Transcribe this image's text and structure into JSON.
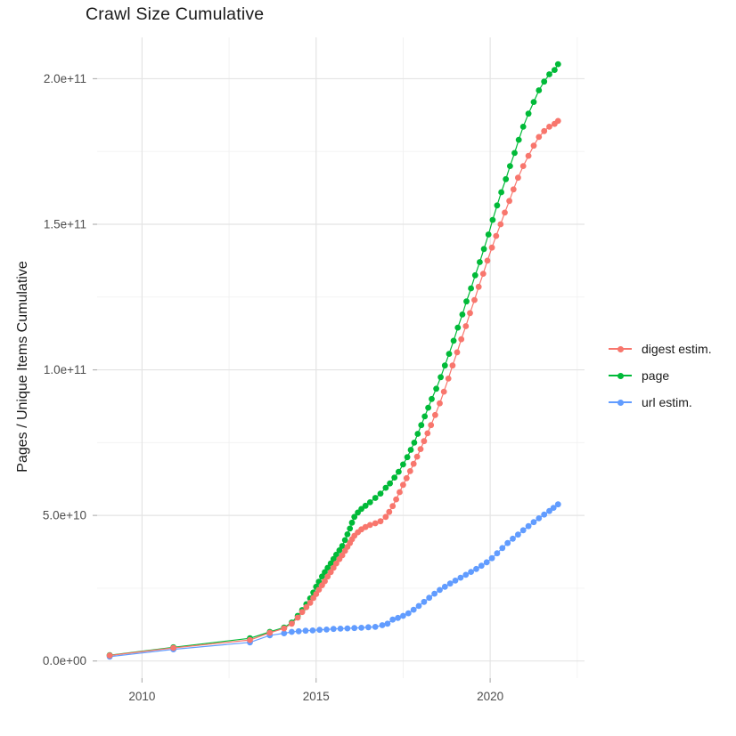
{
  "title": "Crawl Size Cumulative",
  "y_axis": {
    "title": "Pages / Unique Items Cumulative",
    "tick_labels": [
      "0.0e+00",
      "5.0e+10",
      "1.0e+11",
      "1.5e+11",
      "2.0e+11"
    ]
  },
  "x_axis": {
    "tick_labels": [
      "2010",
      "2015",
      "2020"
    ]
  },
  "legend": {
    "items": [
      {
        "label": "digest estim.",
        "color": "#F8766D"
      },
      {
        "label": "page",
        "color": "#00BA38"
      },
      {
        "label": "url estim.",
        "color": "#619CFF"
      }
    ]
  },
  "colors": {
    "background": "#ffffff",
    "grid_major": "#e4e4e4",
    "grid_minor": "#f1f1f1",
    "tick_mark": "#b3b3b3",
    "axis_text": "#4d4d4d",
    "title_text": "#1a1a1a"
  },
  "chart_data": {
    "type": "line",
    "title": "Crawl Size Cumulative",
    "xlabel": "",
    "ylabel": "Pages / Unique Items Cumulative",
    "x_unit": "year (decimal)",
    "y_unit": "items, billions (1e9)",
    "xlim": [
      2008.71,
      2022.71
    ],
    "ylim": [
      -5.9,
      214.2
    ],
    "x_ticks": [
      2010,
      2015,
      2020
    ],
    "x_minor_ticks": [
      2012.5,
      2017.5,
      2022.5
    ],
    "y_ticks": [
      0,
      50,
      100,
      150,
      200
    ],
    "y_tick_labels": [
      "0.0e+00",
      "5.0e+10",
      "1.0e+11",
      "1.5e+11",
      "2.0e+11"
    ],
    "y_minor_ticks": [
      25,
      75,
      125,
      175
    ],
    "grid": true,
    "legend_position": "right",
    "marker": "point",
    "series": [
      {
        "name": "digest estim.",
        "color": "#F8766D",
        "points": [
          [
            2009.07,
            1.9
          ],
          [
            2010.9,
            4.5
          ],
          [
            2013.1,
            7.2
          ],
          [
            2013.67,
            9.7
          ],
          [
            2014.08,
            11.2
          ],
          [
            2014.3,
            12.8
          ],
          [
            2014.47,
            14.9
          ],
          [
            2014.6,
            16.8
          ],
          [
            2014.72,
            18.5
          ],
          [
            2014.83,
            20.0
          ],
          [
            2014.92,
            21.6
          ],
          [
            2015.0,
            23.0
          ],
          [
            2015.08,
            24.5
          ],
          [
            2015.17,
            26.0
          ],
          [
            2015.25,
            27.4
          ],
          [
            2015.33,
            29.0
          ],
          [
            2015.42,
            30.5
          ],
          [
            2015.5,
            32.0
          ],
          [
            2015.58,
            33.5
          ],
          [
            2015.67,
            35.0
          ],
          [
            2015.75,
            36.3
          ],
          [
            2015.83,
            37.8
          ],
          [
            2015.9,
            39.2
          ],
          [
            2015.97,
            40.5
          ],
          [
            2016.03,
            41.8
          ],
          [
            2016.1,
            43.0
          ],
          [
            2016.2,
            44.2
          ],
          [
            2016.3,
            45.2
          ],
          [
            2016.42,
            46.0
          ],
          [
            2016.55,
            46.7
          ],
          [
            2016.7,
            47.3
          ],
          [
            2016.85,
            48.0
          ],
          [
            2017.0,
            49.5
          ],
          [
            2017.1,
            51.2
          ],
          [
            2017.2,
            53.2
          ],
          [
            2017.3,
            55.5
          ],
          [
            2017.4,
            58.0
          ],
          [
            2017.5,
            60.5
          ],
          [
            2017.6,
            62.8
          ],
          [
            2017.7,
            65.2
          ],
          [
            2017.8,
            67.7
          ],
          [
            2017.9,
            70.2
          ],
          [
            2018.0,
            72.8
          ],
          [
            2018.1,
            75.5
          ],
          [
            2018.2,
            78.2
          ],
          [
            2018.3,
            81.0
          ],
          [
            2018.42,
            84.5
          ],
          [
            2018.55,
            88.5
          ],
          [
            2018.67,
            92.5
          ],
          [
            2018.8,
            97.0
          ],
          [
            2018.92,
            101.5
          ],
          [
            2019.05,
            106.0
          ],
          [
            2019.17,
            110.5
          ],
          [
            2019.3,
            115.0
          ],
          [
            2019.42,
            119.5
          ],
          [
            2019.55,
            124.0
          ],
          [
            2019.67,
            128.5
          ],
          [
            2019.8,
            133.0
          ],
          [
            2019.92,
            137.5
          ],
          [
            2020.05,
            142.0
          ],
          [
            2020.17,
            146.0
          ],
          [
            2020.3,
            150.0
          ],
          [
            2020.42,
            154.0
          ],
          [
            2020.55,
            158.0
          ],
          [
            2020.67,
            162.0
          ],
          [
            2020.8,
            166.0
          ],
          [
            2020.95,
            170.0
          ],
          [
            2021.1,
            173.5
          ],
          [
            2021.25,
            177.0
          ],
          [
            2021.4,
            180.0
          ],
          [
            2021.55,
            182.0
          ],
          [
            2021.7,
            183.5
          ],
          [
            2021.85,
            184.5
          ],
          [
            2021.95,
            185.5
          ]
        ]
      },
      {
        "name": "page",
        "color": "#00BA38",
        "points": [
          [
            2009.07,
            2.0
          ],
          [
            2010.9,
            4.7
          ],
          [
            2013.1,
            7.8
          ],
          [
            2013.67,
            10.0
          ],
          [
            2014.08,
            11.5
          ],
          [
            2014.3,
            13.2
          ],
          [
            2014.47,
            15.5
          ],
          [
            2014.6,
            17.5
          ],
          [
            2014.72,
            19.5
          ],
          [
            2014.83,
            21.5
          ],
          [
            2014.92,
            23.5
          ],
          [
            2015.0,
            25.5
          ],
          [
            2015.08,
            27.2
          ],
          [
            2015.17,
            29.0
          ],
          [
            2015.25,
            30.5
          ],
          [
            2015.33,
            32.0
          ],
          [
            2015.42,
            33.5
          ],
          [
            2015.5,
            35.0
          ],
          [
            2015.58,
            36.5
          ],
          [
            2015.67,
            38.0
          ],
          [
            2015.75,
            39.5
          ],
          [
            2015.83,
            41.5
          ],
          [
            2015.9,
            43.5
          ],
          [
            2015.97,
            45.5
          ],
          [
            2016.03,
            47.5
          ],
          [
            2016.1,
            49.5
          ],
          [
            2016.2,
            51.0
          ],
          [
            2016.3,
            52.2
          ],
          [
            2016.42,
            53.3
          ],
          [
            2016.55,
            54.5
          ],
          [
            2016.7,
            56.0
          ],
          [
            2016.85,
            57.5
          ],
          [
            2017.0,
            59.5
          ],
          [
            2017.12,
            61.0
          ],
          [
            2017.25,
            63.0
          ],
          [
            2017.37,
            65.0
          ],
          [
            2017.5,
            67.5
          ],
          [
            2017.62,
            70.0
          ],
          [
            2017.72,
            72.5
          ],
          [
            2017.82,
            75.0
          ],
          [
            2017.92,
            78.0
          ],
          [
            2018.02,
            81.0
          ],
          [
            2018.12,
            84.0
          ],
          [
            2018.22,
            87.0
          ],
          [
            2018.32,
            90.0
          ],
          [
            2018.45,
            93.5
          ],
          [
            2018.58,
            97.5
          ],
          [
            2018.7,
            101.5
          ],
          [
            2018.82,
            105.5
          ],
          [
            2018.95,
            110.0
          ],
          [
            2019.07,
            114.5
          ],
          [
            2019.2,
            119.0
          ],
          [
            2019.32,
            123.5
          ],
          [
            2019.45,
            128.0
          ],
          [
            2019.57,
            132.5
          ],
          [
            2019.7,
            137.0
          ],
          [
            2019.82,
            141.5
          ],
          [
            2019.95,
            146.5
          ],
          [
            2020.07,
            151.5
          ],
          [
            2020.2,
            156.5
          ],
          [
            2020.32,
            161.0
          ],
          [
            2020.45,
            165.5
          ],
          [
            2020.57,
            170.0
          ],
          [
            2020.7,
            174.5
          ],
          [
            2020.82,
            179.0
          ],
          [
            2020.95,
            183.5
          ],
          [
            2021.1,
            188.0
          ],
          [
            2021.25,
            192.0
          ],
          [
            2021.4,
            196.0
          ],
          [
            2021.55,
            199.0
          ],
          [
            2021.7,
            201.5
          ],
          [
            2021.85,
            203.0
          ],
          [
            2021.95,
            205.0
          ]
        ]
      },
      {
        "name": "url estim.",
        "color": "#619CFF",
        "points": [
          [
            2009.07,
            1.5
          ],
          [
            2010.9,
            4.0
          ],
          [
            2013.1,
            6.4
          ],
          [
            2013.67,
            8.8
          ],
          [
            2014.08,
            9.5
          ],
          [
            2014.3,
            10.0
          ],
          [
            2014.5,
            10.2
          ],
          [
            2014.7,
            10.4
          ],
          [
            2014.9,
            10.5
          ],
          [
            2015.1,
            10.7
          ],
          [
            2015.3,
            10.8
          ],
          [
            2015.5,
            11.0
          ],
          [
            2015.7,
            11.1
          ],
          [
            2015.9,
            11.2
          ],
          [
            2016.1,
            11.3
          ],
          [
            2016.3,
            11.4
          ],
          [
            2016.5,
            11.6
          ],
          [
            2016.7,
            11.7
          ],
          [
            2016.9,
            12.3
          ],
          [
            2017.05,
            12.8
          ],
          [
            2017.2,
            14.2
          ],
          [
            2017.35,
            14.8
          ],
          [
            2017.5,
            15.5
          ],
          [
            2017.65,
            16.4
          ],
          [
            2017.8,
            17.6
          ],
          [
            2017.95,
            18.9
          ],
          [
            2018.1,
            20.3
          ],
          [
            2018.25,
            21.7
          ],
          [
            2018.4,
            23.1
          ],
          [
            2018.55,
            24.4
          ],
          [
            2018.7,
            25.5
          ],
          [
            2018.85,
            26.6
          ],
          [
            2019.0,
            27.6
          ],
          [
            2019.15,
            28.6
          ],
          [
            2019.3,
            29.6
          ],
          [
            2019.45,
            30.6
          ],
          [
            2019.6,
            31.6
          ],
          [
            2019.75,
            32.7
          ],
          [
            2019.9,
            33.9
          ],
          [
            2020.05,
            35.3
          ],
          [
            2020.2,
            37.0
          ],
          [
            2020.35,
            38.8
          ],
          [
            2020.5,
            40.5
          ],
          [
            2020.65,
            42.0
          ],
          [
            2020.8,
            43.4
          ],
          [
            2020.95,
            44.9
          ],
          [
            2021.1,
            46.3
          ],
          [
            2021.25,
            47.7
          ],
          [
            2021.4,
            49.0
          ],
          [
            2021.55,
            50.3
          ],
          [
            2021.7,
            51.5
          ],
          [
            2021.82,
            52.6
          ],
          [
            2021.95,
            53.8
          ]
        ]
      }
    ]
  }
}
